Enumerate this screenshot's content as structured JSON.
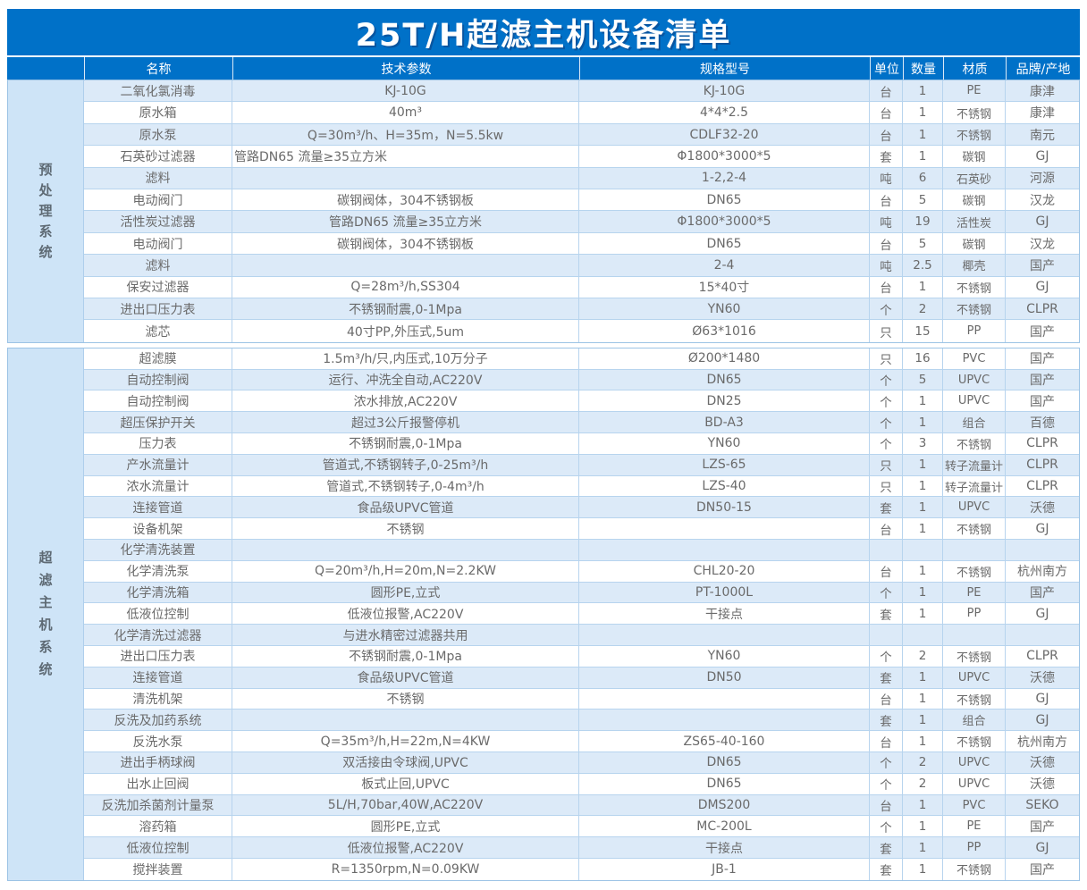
{
  "title": "25T/H超滤主机设备清单",
  "columns": [
    "名称",
    "技术参数",
    "规格型号",
    "单位",
    "数量",
    "材质",
    "品牌/产地"
  ],
  "colors": {
    "header_blue": "#0071C8",
    "stripe_blue": "#DCEAF8",
    "group_column_blue": "#CEE4F7",
    "border": "#B7D4EE",
    "body_text": "#6A6A6A",
    "header_text": "#FFFFFF"
  },
  "sections": [
    {
      "label": "预处理系统",
      "stripe_offset": 0,
      "tech_left_rows": [
        3
      ],
      "rows": [
        [
          "二氧化氯消毒",
          "KJ-10G",
          "KJ-10G",
          "台",
          "1",
          "PE",
          "康津"
        ],
        [
          "原水箱",
          "40m³",
          "4*4*2.5",
          "台",
          "1",
          "不锈钢",
          "康津"
        ],
        [
          "原水泵",
          "Q=30m³/h、H=35m，N=5.5kw",
          "CDLF32-20",
          "台",
          "1",
          "不锈钢",
          "南元"
        ],
        [
          "石英砂过滤器",
          "管路DN65 流量≥35立方米",
          "Φ1800*3000*5",
          "套",
          "1",
          "碳钢",
          "GJ"
        ],
        [
          "滤料",
          "",
          "1-2,2-4",
          "吨",
          "6",
          "石英砂",
          "河源"
        ],
        [
          "电动阀门",
          "碳钢阀体，304不锈钢板",
          "DN65",
          "台",
          "5",
          "碳钢",
          "汉龙"
        ],
        [
          "活性炭过滤器",
          "管路DN65 流量≥35立方米",
          "Φ1800*3000*5",
          "吨",
          "19",
          "活性炭",
          "GJ"
        ],
        [
          "电动阀门",
          "碳钢阀体，304不锈钢板",
          "DN65",
          "台",
          "5",
          "碳钢",
          "汉龙"
        ],
        [
          "滤料",
          "",
          "2-4",
          "吨",
          "2.5",
          "椰壳",
          "国产"
        ],
        [
          "保安过滤器",
          "Q=28m³/h,SS304",
          "15*40寸",
          "台",
          "1",
          "不锈钢",
          "GJ"
        ],
        [
          "进出口压力表",
          "不锈钢耐震,0-1Mpa",
          "YN60",
          "个",
          "2",
          "不锈钢",
          "CLPR"
        ],
        [
          "滤芯",
          "40寸PP,外压式,5um",
          "Ø63*1016",
          "只",
          "15",
          "PP",
          "国产"
        ]
      ]
    },
    {
      "label": "超滤主机系统",
      "stripe_offset": 1,
      "tech_left_rows": [],
      "rows": [
        [
          "超滤膜",
          "1.5m³/h/只,内压式,10万分子",
          "Ø200*1480",
          "只",
          "16",
          "PVC",
          "国产"
        ],
        [
          "自动控制阀",
          "运行、冲洗全自动,AC220V",
          "DN65",
          "个",
          "5",
          "UPVC",
          "国产"
        ],
        [
          "自动控制阀",
          "浓水排放,AC220V",
          "DN25",
          "个",
          "1",
          "UPVC",
          "国产"
        ],
        [
          "超压保护开关",
          "超过3公斤报警停机",
          "BD-A3",
          "个",
          "1",
          "组合",
          "百德"
        ],
        [
          "压力表",
          "不锈钢耐震,0-1Mpa",
          "YN60",
          "个",
          "3",
          "不锈钢",
          "CLPR"
        ],
        [
          "产水流量计",
          "管道式,不锈钢转子,0-25m³/h",
          "LZS-65",
          "只",
          "1",
          "转子流量计",
          "CLPR"
        ],
        [
          "浓水流量计",
          "管道式,不锈钢转子,0-4m³/h",
          "LZS-40",
          "只",
          "1",
          "转子流量计",
          "CLPR"
        ],
        [
          "连接管道",
          "食品级UPVC管道",
          "DN50-15",
          "套",
          "1",
          "UPVC",
          "沃德"
        ],
        [
          "设备机架",
          "不锈钢",
          "",
          "台",
          "1",
          "不锈钢",
          "GJ"
        ],
        [
          "化学清洗装置",
          "",
          "",
          "",
          "",
          "",
          ""
        ],
        [
          "化学清洗泵",
          "Q=20m³/h,H=20m,N=2.2KW",
          "CHL20-20",
          "台",
          "1",
          "不锈钢",
          "杭州南方"
        ],
        [
          "化学清洗箱",
          "圆形PE,立式",
          "PT-1000L",
          "个",
          "1",
          "PE",
          "国产"
        ],
        [
          "低液位控制",
          "低液位报警,AC220V",
          "干接点",
          "套",
          "1",
          "PP",
          "GJ"
        ],
        [
          "化学清洗过滤器",
          "与进水精密过滤器共用",
          "",
          "",
          "",
          "",
          ""
        ],
        [
          "进出口压力表",
          "不锈钢耐震,0-1Mpa",
          "YN60",
          "个",
          "2",
          "不锈钢",
          "CLPR"
        ],
        [
          "连接管道",
          "食品级UPVC管道",
          "DN50",
          "套",
          "1",
          "UPVC",
          "沃德"
        ],
        [
          "清洗机架",
          "不锈钢",
          "",
          "台",
          "1",
          "不锈钢",
          "GJ"
        ],
        [
          "反洗及加药系统",
          "",
          "",
          "套",
          "1",
          "组合",
          "GJ"
        ],
        [
          "反洗水泵",
          "Q=35m³/h,H=22m,N=4KW",
          "ZS65-40-160",
          "台",
          "1",
          "不锈钢",
          "杭州南方"
        ],
        [
          "进出手柄球阀",
          "双活接由令球阀,UPVC",
          "DN65",
          "个",
          "2",
          "UPVC",
          "沃德"
        ],
        [
          "出水止回阀",
          "板式止回,UPVC",
          "DN65",
          "个",
          "2",
          "UPVC",
          "沃德"
        ],
        [
          "反洗加杀菌剂计量泵",
          "5L/H,70bar,40W,AC220V",
          "DMS200",
          "台",
          "1",
          "PVC",
          "SEKO"
        ],
        [
          "溶药箱",
          "圆形PE,立式",
          "MC-200L",
          "个",
          "1",
          "PE",
          "国产"
        ],
        [
          "低液位控制",
          "低液位报警,AC220V",
          "干接点",
          "套",
          "1",
          "PP",
          "GJ"
        ],
        [
          "搅拌装置",
          "R=1350rpm,N=0.09KW",
          "JB-1",
          "套",
          "1",
          "不锈钢",
          "国产"
        ]
      ]
    }
  ]
}
